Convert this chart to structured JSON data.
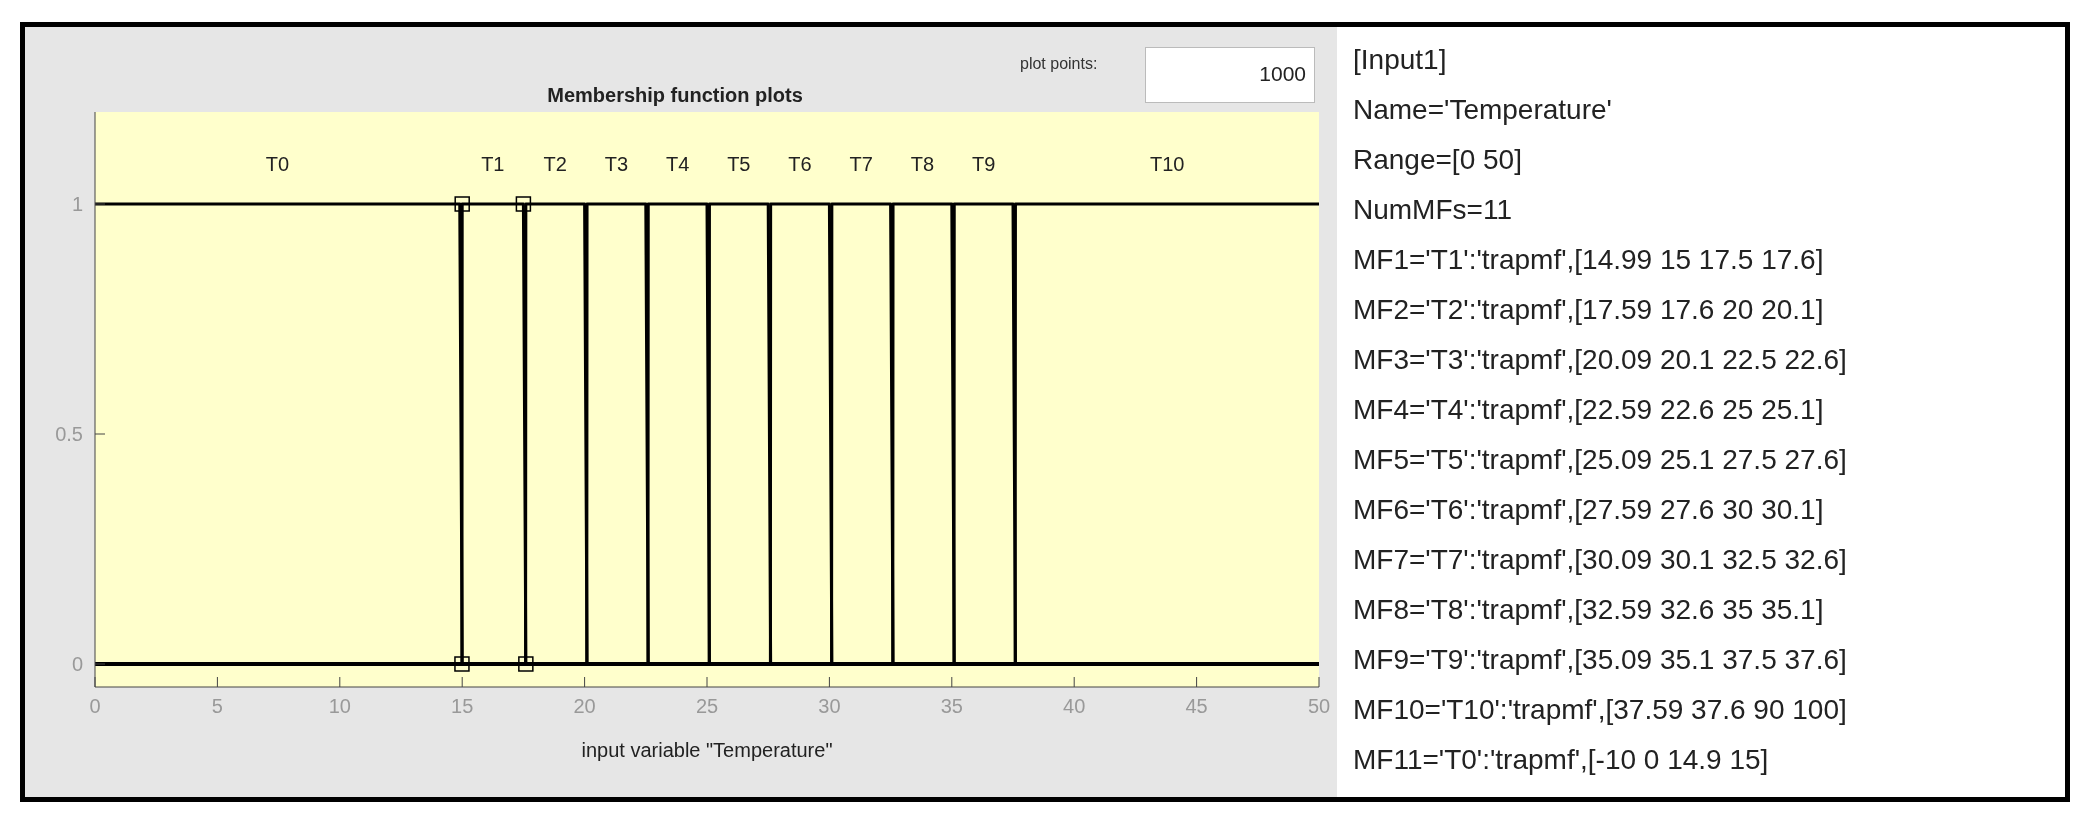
{
  "chart_data": {
    "type": "line",
    "title": "Membership function plots",
    "xlabel": "input variable \"Temperature\"",
    "xlim": [
      0,
      50
    ],
    "xticks": [
      0,
      5,
      10,
      15,
      20,
      25,
      30,
      35,
      40,
      45,
      50
    ],
    "ylim": [
      -0.05,
      1.2
    ],
    "yticks": [
      0,
      0.5,
      1
    ],
    "grid": false,
    "legend": false,
    "marker": "none",
    "line_style": "solid",
    "series": [
      {
        "name": "T0",
        "color": "#000000",
        "x": [
          0,
          14.9,
          15,
          50
        ],
        "values": [
          1,
          1,
          0,
          0
        ]
      },
      {
        "name": "T1",
        "color": "#000000",
        "marker": "square",
        "x": [
          0,
          14.99,
          15,
          17.5,
          17.6,
          50
        ],
        "values": [
          0,
          0,
          1,
          1,
          0,
          0
        ]
      },
      {
        "name": "T2",
        "color": "#000000",
        "x": [
          0,
          17.59,
          17.6,
          20,
          20.1,
          50
        ],
        "values": [
          0,
          0,
          1,
          1,
          0,
          0
        ]
      },
      {
        "name": "T3",
        "color": "#000000",
        "x": [
          0,
          20.09,
          20.1,
          22.5,
          22.6,
          50
        ],
        "values": [
          0,
          0,
          1,
          1,
          0,
          0
        ]
      },
      {
        "name": "T4",
        "color": "#000000",
        "x": [
          0,
          22.59,
          22.6,
          25,
          25.1,
          50
        ],
        "values": [
          0,
          0,
          1,
          1,
          0,
          0
        ]
      },
      {
        "name": "T5",
        "color": "#000000",
        "x": [
          0,
          25.09,
          25.1,
          27.5,
          27.6,
          50
        ],
        "values": [
          0,
          0,
          1,
          1,
          0,
          0
        ]
      },
      {
        "name": "T6",
        "color": "#000000",
        "x": [
          0,
          27.59,
          27.6,
          30,
          30.1,
          50
        ],
        "values": [
          0,
          0,
          1,
          1,
          0,
          0
        ]
      },
      {
        "name": "T7",
        "color": "#000000",
        "x": [
          0,
          30.09,
          30.1,
          32.5,
          32.6,
          50
        ],
        "values": [
          0,
          0,
          1,
          1,
          0,
          0
        ]
      },
      {
        "name": "T8",
        "color": "#000000",
        "x": [
          0,
          32.59,
          32.6,
          35,
          35.1,
          50
        ],
        "values": [
          0,
          0,
          1,
          1,
          0,
          0
        ]
      },
      {
        "name": "T9",
        "color": "#000000",
        "x": [
          0,
          35.09,
          35.1,
          37.5,
          37.6,
          50
        ],
        "values": [
          0,
          0,
          1,
          1,
          0,
          0
        ]
      },
      {
        "name": "T10",
        "color": "#000000",
        "x": [
          0,
          37.59,
          37.6,
          50
        ],
        "values": [
          0,
          0,
          1,
          1
        ]
      }
    ],
    "annotations": [
      "plot points:",
      "1000",
      "[Input1]",
      "Name='Temperature'",
      "Range=[0 50]",
      "NumMFs=11",
      "MF1='T1':'trapmf',[14.99 15 17.5 17.6]",
      "MF2='T2':'trapmf',[17.59 17.6 20 20.1]",
      "MF3='T3':'trapmf',[20.09 20.1 22.5 22.6]",
      "MF4='T4':'trapmf',[22.59 22.6 25 25.1]",
      "MF5='T5':'trapmf',[25.09 25.1 27.5 27.6]",
      "MF6='T6':'trapmf',[27.59 27.6 30 30.1]",
      "MF7='T7':'trapmf',[30.09 30.1 32.5 32.6]",
      "MF8='T8':'trapmf',[32.59 32.6 35 35.1]",
      "MF9='T9':'trapmf',[35.09 35.1 37.5 37.6]",
      "MF10='T10':'trapmf',[37.59 37.6 90 100]",
      "MF11='T0':'trapmf',[-10 0 14.9 15]"
    ]
  }
}
